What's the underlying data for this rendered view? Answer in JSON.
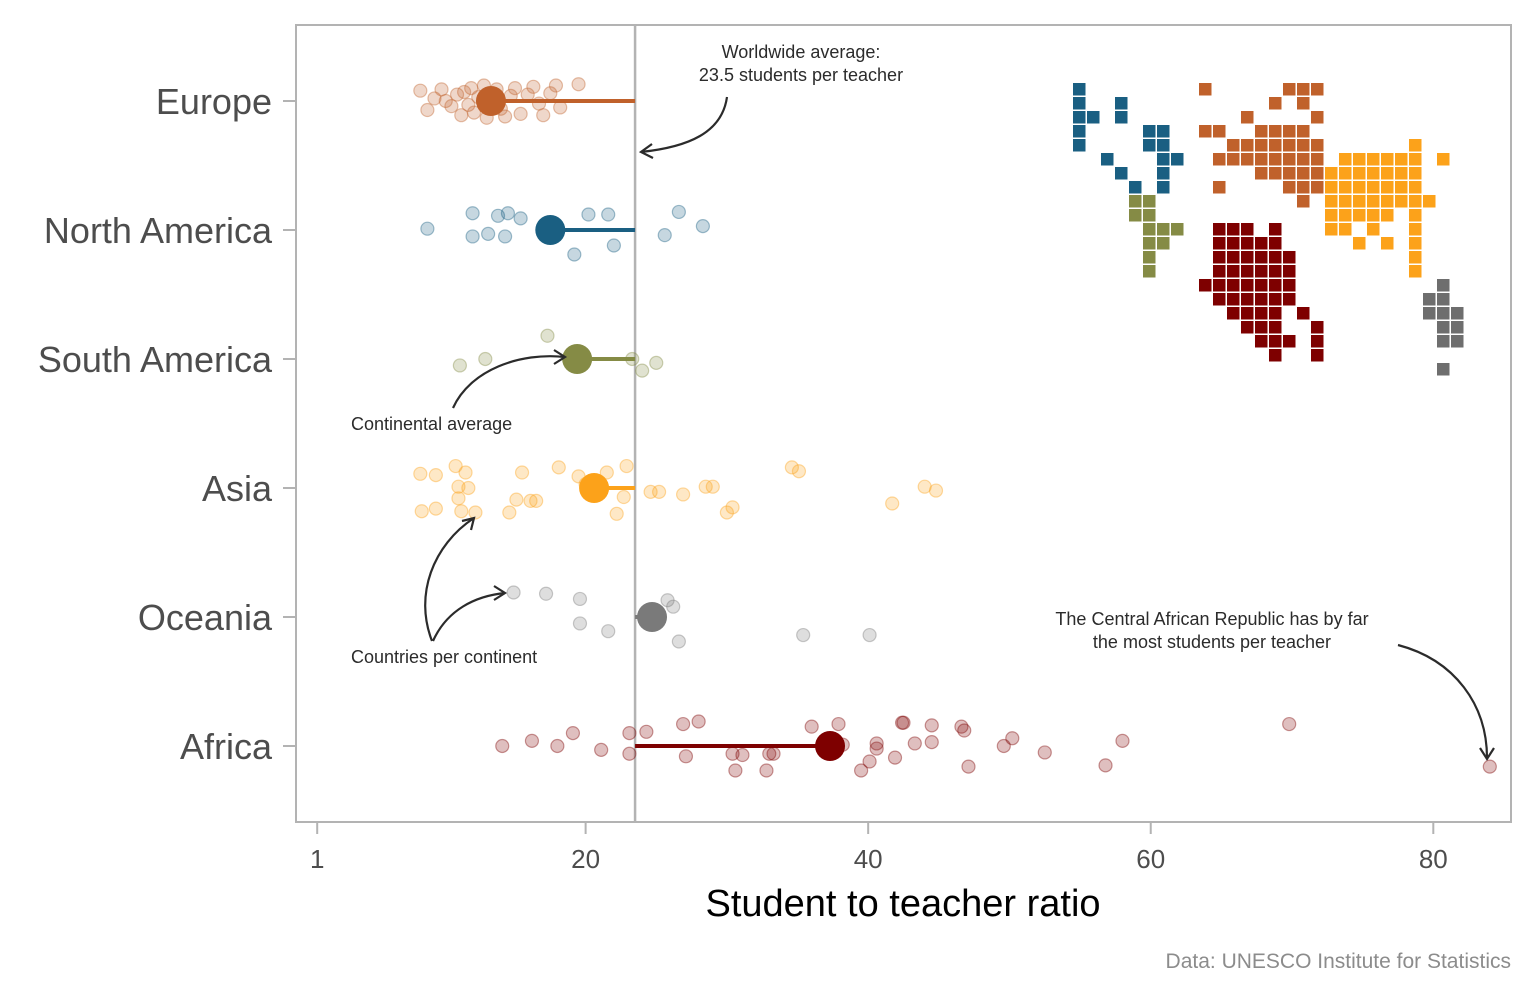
{
  "chart_data": {
    "type": "scatter",
    "xlabel": "Student to teacher ratio",
    "ylabel": "",
    "xlim": [
      -0.5,
      85.5
    ],
    "x_ticks": [
      1,
      20,
      40,
      60,
      80
    ],
    "grid": false,
    "legend": "none",
    "worldwide_average": 23.5,
    "caption": "Data: UNESCO Institute for Statistics",
    "annotations": {
      "worldwide": [
        "Worldwide average:",
        "23.5 students per teacher"
      ],
      "continental": "Continental average",
      "countries": "Countries per continent",
      "car": [
        "The Central African Republic has by far",
        "the most students per teacher"
      ]
    },
    "series": [
      {
        "name": "Europe",
        "color": "#C0612B",
        "average": 13.3,
        "countries": [
          {
            "x": 8.3,
            "y": 0.08
          },
          {
            "x": 8.8,
            "y": -0.07
          },
          {
            "x": 9.3,
            "y": 0.02
          },
          {
            "x": 9.8,
            "y": 0.09
          },
          {
            "x": 10.1,
            "y": 0.0
          },
          {
            "x": 10.5,
            "y": -0.04
          },
          {
            "x": 10.9,
            "y": 0.05
          },
          {
            "x": 11.2,
            "y": -0.11
          },
          {
            "x": 11.4,
            "y": 0.07
          },
          {
            "x": 11.7,
            "y": -0.03
          },
          {
            "x": 11.9,
            "y": 0.1
          },
          {
            "x": 12.1,
            "y": -0.09
          },
          {
            "x": 12.4,
            "y": 0.03
          },
          {
            "x": 12.8,
            "y": 0.12
          },
          {
            "x": 13.0,
            "y": -0.13
          },
          {
            "x": 13.3,
            "y": 0.01
          },
          {
            "x": 13.7,
            "y": 0.09
          },
          {
            "x": 14.0,
            "y": -0.06
          },
          {
            "x": 14.3,
            "y": -0.12
          },
          {
            "x": 14.7,
            "y": 0.04
          },
          {
            "x": 15.0,
            "y": 0.1
          },
          {
            "x": 15.4,
            "y": -0.1
          },
          {
            "x": 15.9,
            "y": 0.05
          },
          {
            "x": 16.3,
            "y": 0.11
          },
          {
            "x": 16.7,
            "y": -0.02
          },
          {
            "x": 17.0,
            "y": -0.11
          },
          {
            "x": 17.5,
            "y": 0.06
          },
          {
            "x": 17.9,
            "y": 0.12
          },
          {
            "x": 18.2,
            "y": -0.05
          },
          {
            "x": 19.5,
            "y": 0.13
          }
        ]
      },
      {
        "name": "North America",
        "color": "#1A5F82",
        "average": 17.5,
        "countries": [
          {
            "x": 8.8,
            "y": 0.01
          },
          {
            "x": 12.0,
            "y": 0.13
          },
          {
            "x": 12.0,
            "y": -0.05
          },
          {
            "x": 13.1,
            "y": -0.03
          },
          {
            "x": 13.8,
            "y": 0.11
          },
          {
            "x": 14.3,
            "y": -0.05
          },
          {
            "x": 14.5,
            "y": 0.13
          },
          {
            "x": 15.4,
            "y": 0.09
          },
          {
            "x": 17.4,
            "y": 0.02
          },
          {
            "x": 19.2,
            "y": -0.19
          },
          {
            "x": 20.2,
            "y": 0.12
          },
          {
            "x": 21.6,
            "y": 0.12
          },
          {
            "x": 22.0,
            "y": -0.12
          },
          {
            "x": 25.6,
            "y": -0.04
          },
          {
            "x": 26.6,
            "y": 0.14
          },
          {
            "x": 28.3,
            "y": 0.03
          }
        ]
      },
      {
        "name": "South America",
        "color": "#858B45",
        "average": 19.4,
        "countries": [
          {
            "x": 11.1,
            "y": -0.05
          },
          {
            "x": 12.9,
            "y": 0.0
          },
          {
            "x": 17.3,
            "y": 0.18
          },
          {
            "x": 23.3,
            "y": 0.0
          },
          {
            "x": 24.0,
            "y": -0.09
          },
          {
            "x": 25.0,
            "y": -0.03
          }
        ]
      },
      {
        "name": "Asia",
        "color": "#FCA21A",
        "average": 20.6,
        "countries": [
          {
            "x": 8.3,
            "y": 0.11
          },
          {
            "x": 8.4,
            "y": -0.18
          },
          {
            "x": 9.4,
            "y": -0.16
          },
          {
            "x": 9.4,
            "y": 0.1
          },
          {
            "x": 10.8,
            "y": 0.17
          },
          {
            "x": 11.0,
            "y": 0.01
          },
          {
            "x": 11.0,
            "y": -0.08
          },
          {
            "x": 11.2,
            "y": -0.18
          },
          {
            "x": 11.5,
            "y": 0.12
          },
          {
            "x": 11.7,
            "y": 0.0
          },
          {
            "x": 12.2,
            "y": -0.19
          },
          {
            "x": 14.6,
            "y": -0.19
          },
          {
            "x": 15.1,
            "y": -0.09
          },
          {
            "x": 15.5,
            "y": 0.12
          },
          {
            "x": 16.1,
            "y": -0.1
          },
          {
            "x": 16.5,
            "y": -0.1
          },
          {
            "x": 18.1,
            "y": 0.16
          },
          {
            "x": 19.5,
            "y": 0.09
          },
          {
            "x": 20.0,
            "y": 0.03
          },
          {
            "x": 20.8,
            "y": -0.03
          },
          {
            "x": 21.5,
            "y": 0.12
          },
          {
            "x": 22.2,
            "y": -0.2
          },
          {
            "x": 22.7,
            "y": -0.07
          },
          {
            "x": 22.9,
            "y": 0.17
          },
          {
            "x": 24.6,
            "y": -0.03
          },
          {
            "x": 25.2,
            "y": -0.03
          },
          {
            "x": 26.9,
            "y": -0.05
          },
          {
            "x": 28.5,
            "y": 0.01
          },
          {
            "x": 29.0,
            "y": 0.01
          },
          {
            "x": 30.0,
            "y": -0.19
          },
          {
            "x": 30.4,
            "y": -0.15
          },
          {
            "x": 34.6,
            "y": 0.16
          },
          {
            "x": 35.1,
            "y": 0.13
          },
          {
            "x": 41.7,
            "y": -0.12
          },
          {
            "x": 44.0,
            "y": 0.01
          },
          {
            "x": 44.8,
            "y": -0.02
          }
        ]
      },
      {
        "name": "Oceania",
        "color": "#7A7A7A",
        "average": 24.7,
        "countries": [
          {
            "x": 14.9,
            "y": 0.19
          },
          {
            "x": 17.2,
            "y": 0.18
          },
          {
            "x": 19.6,
            "y": 0.14
          },
          {
            "x": 19.6,
            "y": -0.05
          },
          {
            "x": 21.6,
            "y": -0.11
          },
          {
            "x": 25.8,
            "y": 0.13
          },
          {
            "x": 26.2,
            "y": 0.08
          },
          {
            "x": 26.6,
            "y": -0.19
          },
          {
            "x": 35.4,
            "y": -0.14
          },
          {
            "x": 40.1,
            "y": -0.14
          }
        ]
      },
      {
        "name": "Africa",
        "color": "#7E0000",
        "average": 37.3,
        "countries": [
          {
            "x": 14.1,
            "y": 0.0
          },
          {
            "x": 16.2,
            "y": 0.04
          },
          {
            "x": 18.0,
            "y": 0.0
          },
          {
            "x": 19.1,
            "y": 0.1
          },
          {
            "x": 21.1,
            "y": -0.03
          },
          {
            "x": 23.1,
            "y": 0.1
          },
          {
            "x": 23.1,
            "y": -0.06
          },
          {
            "x": 24.3,
            "y": 0.11
          },
          {
            "x": 26.9,
            "y": 0.17
          },
          {
            "x": 27.1,
            "y": -0.08
          },
          {
            "x": 28.0,
            "y": 0.19
          },
          {
            "x": 30.4,
            "y": -0.06
          },
          {
            "x": 30.6,
            "y": -0.19
          },
          {
            "x": 31.1,
            "y": -0.07
          },
          {
            "x": 32.8,
            "y": -0.19
          },
          {
            "x": 33.0,
            "y": -0.06
          },
          {
            "x": 33.3,
            "y": -0.06
          },
          {
            "x": 36.0,
            "y": 0.15
          },
          {
            "x": 37.9,
            "y": 0.17
          },
          {
            "x": 38.2,
            "y": 0.01
          },
          {
            "x": 39.5,
            "y": -0.19
          },
          {
            "x": 40.1,
            "y": -0.12
          },
          {
            "x": 40.6,
            "y": 0.02
          },
          {
            "x": 40.6,
            "y": -0.02
          },
          {
            "x": 41.9,
            "y": -0.09
          },
          {
            "x": 42.4,
            "y": 0.18
          },
          {
            "x": 42.5,
            "y": 0.18
          },
          {
            "x": 43.3,
            "y": 0.02
          },
          {
            "x": 44.5,
            "y": 0.16
          },
          {
            "x": 44.5,
            "y": 0.03
          },
          {
            "x": 46.6,
            "y": 0.15
          },
          {
            "x": 46.8,
            "y": 0.12
          },
          {
            "x": 47.1,
            "y": -0.16
          },
          {
            "x": 49.6,
            "y": 0.0
          },
          {
            "x": 50.2,
            "y": 0.06
          },
          {
            "x": 52.5,
            "y": -0.05
          },
          {
            "x": 56.8,
            "y": -0.15
          },
          {
            "x": 58.0,
            "y": 0.04
          },
          {
            "x": 69.8,
            "y": 0.17
          },
          {
            "x": 84.0,
            "y": -0.16
          }
        ]
      }
    ],
    "tile_map": {
      "columns": 28,
      "rows": 21,
      "regions": [
        {
          "name": "North America",
          "color": "#1A5F82",
          "rows": [
            "0,0",
            "1,0",
            "1,3",
            "2,0",
            "2,1",
            "2,3",
            "3,0",
            "3,5",
            "3,6",
            "4,0",
            "4,5",
            "4,6",
            "5,2",
            "5,6",
            "5,7",
            "6,3",
            "6,6",
            "7,4",
            "7,6"
          ]
        },
        {
          "name": "South America",
          "color": "#858B45",
          "rows": [
            "8,4",
            "8,5",
            "9,4",
            "9,5",
            "10,5",
            "10,6",
            "10,7",
            "11,5",
            "11,6",
            "12,5",
            "13,5"
          ]
        },
        {
          "name": "Europe",
          "color": "#C0612B",
          "rows": [
            "0,9",
            "0,15",
            "0,16",
            "0,17",
            "1,14",
            "1,16",
            "2,12",
            "2,17",
            "3,9",
            "3,10",
            "3,13",
            "3,14",
            "3,15",
            "3,16",
            "4,11",
            "4,12",
            "4,13",
            "4,14",
            "4,15",
            "4,16",
            "4,17",
            "5,10",
            "5,11",
            "5,12",
            "5,13",
            "5,14",
            "5,15",
            "5,16",
            "5,17",
            "6,13",
            "6,14",
            "6,15",
            "6,16",
            "6,17",
            "7,10",
            "7,15",
            "7,16",
            "7,17",
            "8,16"
          ]
        },
        {
          "name": "Asia",
          "color": "#FCA21A",
          "rows": [
            "4,24",
            "5,19",
            "5,20",
            "5,21",
            "5,22",
            "5,23",
            "5,24",
            "5,26",
            "6,18",
            "6,19",
            "6,20",
            "6,21",
            "6,22",
            "6,23",
            "6,24",
            "7,18",
            "7,19",
            "7,20",
            "7,21",
            "7,22",
            "7,23",
            "7,24",
            "8,18",
            "8,19",
            "8,20",
            "8,21",
            "8,22",
            "8,23",
            "8,24",
            "8,25",
            "9,18",
            "9,19",
            "9,20",
            "9,21",
            "9,22",
            "9,24",
            "10,18",
            "10,19",
            "10,21",
            "10,24",
            "11,20",
            "11,22",
            "11,24",
            "12,24",
            "13,24"
          ]
        },
        {
          "name": "Africa",
          "color": "#7E0000",
          "rows": [
            "10,10",
            "10,11",
            "10,12",
            "10,14",
            "11,10",
            "11,11",
            "11,12",
            "11,13",
            "11,14",
            "12,10",
            "12,11",
            "12,12",
            "12,13",
            "12,14",
            "12,15",
            "13,10",
            "13,11",
            "13,12",
            "13,13",
            "13,14",
            "13,15",
            "14,9",
            "14,10",
            "14,11",
            "14,12",
            "14,13",
            "14,14",
            "14,15",
            "15,10",
            "15,11",
            "15,12",
            "15,13",
            "15,14",
            "15,15",
            "16,11",
            "16,12",
            "16,13",
            "16,14",
            "16,16",
            "17,12",
            "17,13",
            "17,14",
            "17,17",
            "18,13",
            "18,14",
            "18,15",
            "18,17",
            "19,14",
            "19,17"
          ]
        },
        {
          "name": "Oceania",
          "color": "#6E6E6E",
          "rows": [
            "14,26",
            "15,25",
            "15,26",
            "16,25",
            "16,26",
            "16,27",
            "17,26",
            "17,27",
            "18,26",
            "18,27",
            "20,26"
          ]
        }
      ]
    }
  }
}
